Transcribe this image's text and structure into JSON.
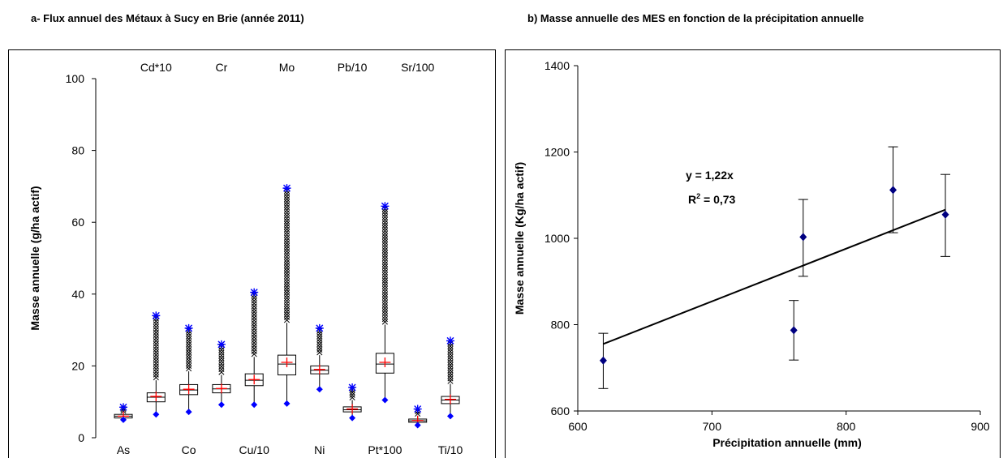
{
  "chart_data": [
    {
      "type": "box",
      "title": "a- Flux annuel des Métaux à Sucy en Brie (année 2011)",
      "xlabel": "",
      "ylabel": "Masse annuelle (g/ha actif)",
      "ylim": [
        0,
        100
      ],
      "yticks": [
        0,
        20,
        40,
        60,
        80,
        100
      ],
      "grid": false,
      "categories": [
        "As",
        "Cd*10",
        "Co",
        "Cr",
        "Cu/10",
        "Mo",
        "Ni",
        "Pb/10",
        "Pt*100",
        "Sr/100",
        "Ti/10"
      ],
      "label_rows": {
        "top": [
          "Cd*10",
          "Cr",
          "Mo",
          "Pb/10",
          "Sr/100"
        ],
        "bottom": [
          "As",
          "Co",
          "Cu/10",
          "Ni",
          "Pt*100",
          "Ti/10"
        ]
      },
      "boxes": [
        {
          "name": "As",
          "min": 5.0,
          "q1": 5.5,
          "median": 6.0,
          "mean": 6.0,
          "q3": 6.5,
          "whisker_high": 7.0,
          "outlier_max": 8.5
        },
        {
          "name": "Cd*10",
          "min": 6.5,
          "q1": 10.0,
          "median": 11.3,
          "mean": 11.5,
          "q3": 12.5,
          "whisker_high": 16.0,
          "outlier_max": 34.0
        },
        {
          "name": "Co",
          "min": 7.2,
          "q1": 12.0,
          "median": 13.3,
          "mean": 13.5,
          "q3": 14.8,
          "whisker_high": 18.5,
          "outlier_max": 30.5
        },
        {
          "name": "Cr",
          "min": 9.2,
          "q1": 12.5,
          "median": 13.6,
          "mean": 13.7,
          "q3": 14.8,
          "whisker_high": 17.5,
          "outlier_max": 26.0
        },
        {
          "name": "Cu/10",
          "min": 9.2,
          "q1": 14.5,
          "median": 16.0,
          "mean": 16.2,
          "q3": 17.8,
          "whisker_high": 22.5,
          "outlier_max": 40.5
        },
        {
          "name": "Mo",
          "min": 9.5,
          "q1": 17.5,
          "median": 20.5,
          "mean": 21.0,
          "q3": 23.0,
          "whisker_high": 32.0,
          "outlier_max": 69.5
        },
        {
          "name": "Ni",
          "min": 13.5,
          "q1": 17.8,
          "median": 18.8,
          "mean": 19.0,
          "q3": 20.0,
          "whisker_high": 23.0,
          "outlier_max": 30.5
        },
        {
          "name": "Pb/10",
          "min": 5.5,
          "q1": 7.2,
          "median": 7.8,
          "mean": 8.0,
          "q3": 8.6,
          "whisker_high": 10.5,
          "outlier_max": 14.0
        },
        {
          "name": "Pt*100",
          "min": 10.5,
          "q1": 18.0,
          "median": 20.5,
          "mean": 21.0,
          "q3": 23.5,
          "whisker_high": 31.5,
          "outlier_max": 64.5
        },
        {
          "name": "Sr/100",
          "min": 3.5,
          "q1": 4.3,
          "median": 4.7,
          "mean": 4.8,
          "q3": 5.2,
          "whisker_high": 6.0,
          "outlier_max": 8.0
        },
        {
          "name": "Ti/10",
          "min": 6.0,
          "q1": 9.5,
          "median": 10.5,
          "mean": 10.7,
          "q3": 11.5,
          "whisker_high": 15.0,
          "outlier_max": 27.0
        }
      ],
      "colors": {
        "box": "#000000",
        "mean_marker": "#ff0000",
        "min_max_marker": "#0000ff",
        "outliers": "#000000"
      }
    },
    {
      "type": "scatter",
      "title": "b) Masse annuelle des MES en fonction de la précipitation annuelle",
      "xlabel": "Précipitation annuelle (mm)",
      "ylabel": "Masse annuelle (Kg/ha actif)",
      "xlim": [
        600,
        900
      ],
      "ylim": [
        600,
        1400
      ],
      "xticks": [
        600,
        700,
        800,
        900
      ],
      "yticks": [
        600,
        800,
        1000,
        1200,
        1400
      ],
      "grid": false,
      "points": [
        {
          "x": 619,
          "y": 717,
          "err_low": 652,
          "err_high": 780
        },
        {
          "x": 761,
          "y": 787,
          "err_low": 718,
          "err_high": 856
        },
        {
          "x": 768,
          "y": 1003,
          "err_low": 912,
          "err_high": 1090
        },
        {
          "x": 835,
          "y": 1112,
          "err_low": 1013,
          "err_high": 1212
        },
        {
          "x": 874,
          "y": 1055,
          "err_low": 958,
          "err_high": 1148
        }
      ],
      "trendline": {
        "slope": 1.22,
        "intercept": 0,
        "x_range": [
          619,
          874
        ]
      },
      "annotation": {
        "equation": "y = 1,22x",
        "r2_prefix": "R",
        "r2_sup": "2",
        "r2_suffix": " = 0,73"
      },
      "colors": {
        "marker": "#000080",
        "line": "#000000",
        "error_bars": "#000000"
      }
    }
  ]
}
